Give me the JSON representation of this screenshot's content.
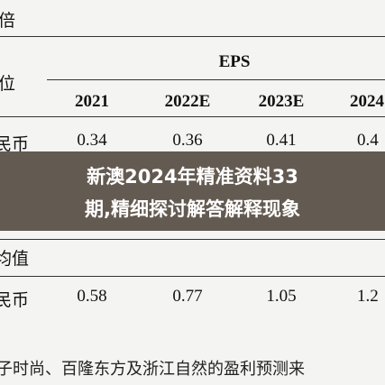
{
  "table": {
    "corner_top": "倍",
    "corner_bottom": "位",
    "group_header": "EPS",
    "columns": [
      "2021",
      "2022E",
      "2023E",
      "2024"
    ],
    "rows": [
      {
        "label": "民币",
        "values": [
          "0.34",
          "0.36",
          "0.41",
          "0.4"
        ]
      },
      {
        "label": "均值"
      },
      {
        "label": "民币",
        "values": [
          "0.58",
          "0.77",
          "1.05",
          "1.2"
        ]
      }
    ]
  },
  "footer": "子时尚、百隆东方及浙江自然的盈利预测来",
  "overlay": {
    "lines": [
      "新澳2024年精准资料33",
      "期,精细探讨解答解释现象"
    ]
  }
}
